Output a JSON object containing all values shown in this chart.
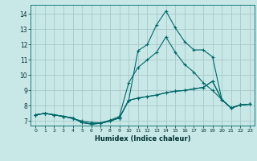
{
  "xlabel": "Humidex (Indice chaleur)",
  "xlim": [
    -0.5,
    23.5
  ],
  "ylim": [
    6.7,
    14.6
  ],
  "bg_color": "#c8e8e8",
  "grid_color": "#a8c8c8",
  "line_color": "#006868",
  "xticks": [
    0,
    1,
    2,
    3,
    4,
    5,
    6,
    7,
    8,
    9,
    10,
    11,
    12,
    13,
    14,
    15,
    16,
    17,
    18,
    19,
    20,
    21,
    22,
    23
  ],
  "yticks": [
    7,
    8,
    9,
    10,
    11,
    12,
    13,
    14
  ],
  "lines": [
    {
      "x": [
        0,
        1,
        2,
        3,
        4,
        5,
        6,
        7,
        8,
        9,
        10,
        11,
        12,
        13,
        14,
        15,
        16,
        17,
        18,
        19,
        20,
        21,
        22,
        23
      ],
      "y": [
        7.4,
        7.5,
        7.4,
        7.3,
        7.2,
        6.9,
        6.8,
        6.85,
        7.0,
        7.2,
        8.35,
        8.5,
        8.6,
        8.7,
        8.85,
        8.95,
        9.0,
        9.1,
        9.2,
        9.6,
        8.4,
        7.85,
        8.05,
        8.1
      ]
    },
    {
      "x": [
        0,
        1,
        2,
        3,
        4,
        5,
        6,
        7,
        8,
        9,
        10,
        11,
        12,
        13,
        14,
        15,
        16,
        17,
        18,
        19,
        20,
        21,
        22,
        23
      ],
      "y": [
        7.4,
        7.5,
        7.4,
        7.3,
        7.2,
        6.9,
        6.8,
        6.85,
        7.0,
        7.2,
        8.35,
        11.6,
        12.0,
        13.3,
        14.2,
        13.1,
        12.2,
        11.65,
        11.65,
        11.2,
        8.4,
        7.85,
        8.05,
        8.1
      ]
    },
    {
      "x": [
        0,
        1,
        2,
        3,
        4,
        5,
        6,
        7,
        8,
        9,
        10,
        11,
        12,
        13,
        14,
        15,
        16,
        17,
        18,
        19,
        20,
        21,
        22,
        23
      ],
      "y": [
        7.4,
        7.5,
        7.4,
        7.3,
        7.15,
        7.0,
        6.9,
        6.88,
        7.05,
        7.3,
        9.5,
        10.5,
        11.0,
        11.5,
        12.5,
        11.5,
        10.7,
        10.2,
        9.5,
        9.0,
        8.4,
        7.85,
        8.05,
        8.1
      ]
    },
    {
      "x": [
        0,
        1,
        2,
        3,
        4,
        5,
        6,
        7,
        8,
        9,
        10,
        11,
        12,
        13,
        14,
        15,
        16,
        17,
        18,
        19,
        20,
        21,
        22,
        23
      ],
      "y": [
        7.4,
        7.5,
        7.4,
        7.3,
        7.2,
        6.9,
        6.8,
        6.85,
        7.0,
        7.2,
        8.35,
        8.5,
        8.6,
        8.7,
        8.85,
        8.95,
        9.0,
        9.1,
        9.2,
        9.6,
        8.4,
        7.85,
        8.05,
        8.1
      ]
    }
  ]
}
